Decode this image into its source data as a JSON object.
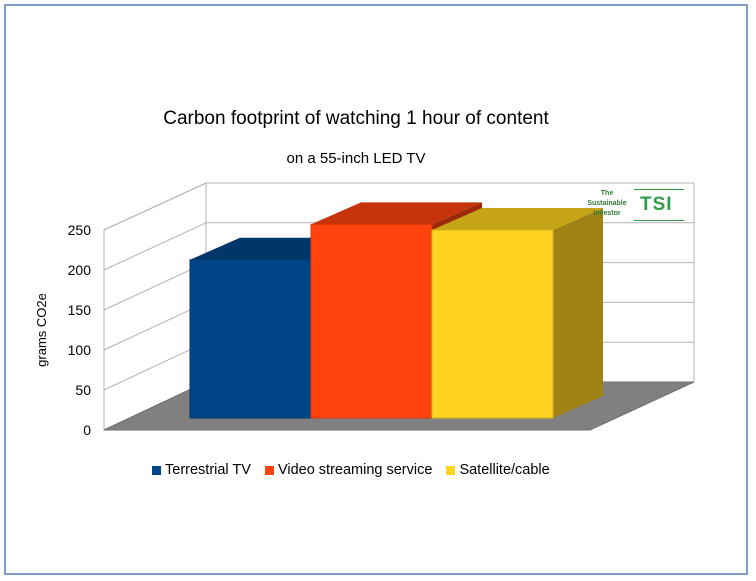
{
  "chart_data": {
    "type": "bar",
    "title": "Carbon footprint of watching 1 hour of content",
    "subtitle": "on a 55-inch LED TV",
    "ylabel": "grams CO2e",
    "xlabel": "",
    "ylim": [
      0,
      250
    ],
    "yticks": [
      "0",
      "50",
      "100",
      "150",
      "200",
      "250"
    ],
    "grid": true,
    "three_d": true,
    "legend_position": "bottom",
    "series": [
      {
        "name": "Terrestrial TV",
        "value": 170,
        "color": "#004586"
      },
      {
        "name": "Video streaming service",
        "value": 208,
        "color": "#ff420e"
      },
      {
        "name": "Satellite/cable",
        "value": 202,
        "color": "#ffd320"
      }
    ]
  },
  "logo": {
    "line1": "The",
    "line2": "Sustainable",
    "line3": "Investor",
    "abbr": "TSI"
  }
}
